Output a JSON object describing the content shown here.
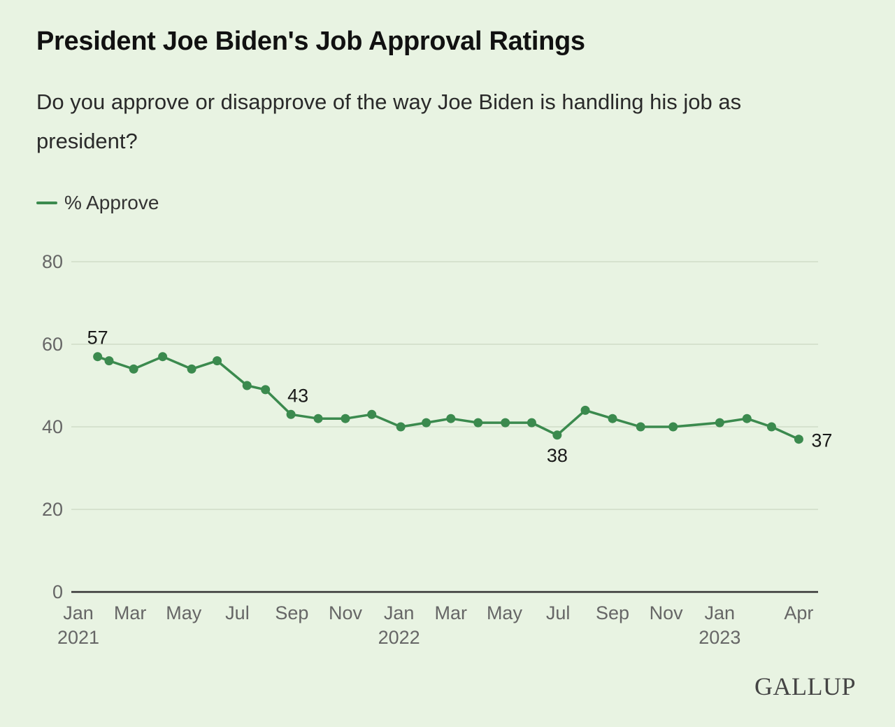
{
  "source": "GALLUP",
  "colors": {
    "series": "#3b8a4e",
    "grid": "#cfdcc8",
    "axis": "#333333",
    "background": "#e8f3e2"
  },
  "chart_data": {
    "type": "line",
    "title": "President Joe Biden's Job Approval Ratings",
    "subtitle": "Do you approve or disapprove of the way Joe Biden is handling his job as president?",
    "ylim": [
      0,
      80
    ],
    "yticks": [
      0,
      20,
      40,
      60,
      80
    ],
    "grid": true,
    "legend_position": "top-left",
    "xlim": [
      "2021-01-01",
      "2023-04-15"
    ],
    "xticks": [
      {
        "date": "2021-01-01",
        "label": "Jan",
        "year": "2021"
      },
      {
        "date": "2021-03-01",
        "label": "Mar",
        "year": ""
      },
      {
        "date": "2021-05-01",
        "label": "May",
        "year": ""
      },
      {
        "date": "2021-07-01",
        "label": "Jul",
        "year": ""
      },
      {
        "date": "2021-09-01",
        "label": "Sep",
        "year": ""
      },
      {
        "date": "2021-11-01",
        "label": "Nov",
        "year": ""
      },
      {
        "date": "2022-01-01",
        "label": "Jan",
        "year": "2022"
      },
      {
        "date": "2022-03-01",
        "label": "Mar",
        "year": ""
      },
      {
        "date": "2022-05-01",
        "label": "May",
        "year": ""
      },
      {
        "date": "2022-07-01",
        "label": "Jul",
        "year": ""
      },
      {
        "date": "2022-09-01",
        "label": "Sep",
        "year": ""
      },
      {
        "date": "2022-11-01",
        "label": "Nov",
        "year": ""
      },
      {
        "date": "2023-01-01",
        "label": "Jan",
        "year": "2023"
      },
      {
        "date": "2023-04-01",
        "label": "Apr",
        "year": ""
      }
    ],
    "series": [
      {
        "name": "% Approve",
        "color": "#3b8a4e",
        "points": [
          {
            "x": "2021-01-23",
            "y": 57,
            "label": "57",
            "label_pos": "above"
          },
          {
            "x": "2021-02-05",
            "y": 56
          },
          {
            "x": "2021-03-05",
            "y": 54
          },
          {
            "x": "2021-04-07",
            "y": 57
          },
          {
            "x": "2021-05-10",
            "y": 54
          },
          {
            "x": "2021-06-08",
            "y": 56
          },
          {
            "x": "2021-07-12",
            "y": 50
          },
          {
            "x": "2021-08-02",
            "y": 49
          },
          {
            "x": "2021-08-31",
            "y": 43,
            "label": "43",
            "label_pos": "above-right"
          },
          {
            "x": "2021-10-01",
            "y": 42
          },
          {
            "x": "2021-11-01",
            "y": 42
          },
          {
            "x": "2021-12-01",
            "y": 43
          },
          {
            "x": "2022-01-03",
            "y": 40
          },
          {
            "x": "2022-02-01",
            "y": 41
          },
          {
            "x": "2022-03-01",
            "y": 42
          },
          {
            "x": "2022-04-01",
            "y": 41
          },
          {
            "x": "2022-05-02",
            "y": 41
          },
          {
            "x": "2022-06-01",
            "y": 41
          },
          {
            "x": "2022-06-30",
            "y": 38,
            "label": "38",
            "label_pos": "below"
          },
          {
            "x": "2022-08-01",
            "y": 44
          },
          {
            "x": "2022-09-01",
            "y": 42
          },
          {
            "x": "2022-10-03",
            "y": 40
          },
          {
            "x": "2022-11-09",
            "y": 40
          },
          {
            "x": "2023-01-01",
            "y": 41
          },
          {
            "x": "2023-02-01",
            "y": 42
          },
          {
            "x": "2023-03-01",
            "y": 40
          },
          {
            "x": "2023-04-01",
            "y": 37,
            "label": "37",
            "label_pos": "right"
          }
        ]
      }
    ]
  }
}
